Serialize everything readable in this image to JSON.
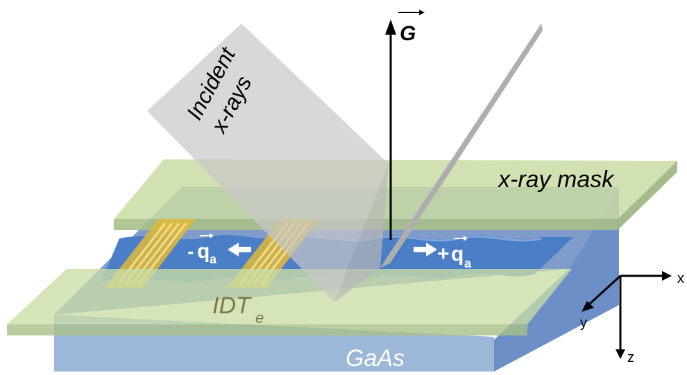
{
  "labels": {
    "incident_line1": "Incident",
    "incident_line2": "x-rays",
    "g_vector": "G",
    "mask": "x-ray mask",
    "idt_main": "IDT",
    "idt_sub": "e",
    "substrate": "GaAs",
    "q_minus_sign": "-",
    "q_plus_sign": "+",
    "q_letter": "q",
    "q_sub": "a",
    "axis_x": "x",
    "axis_y": "y",
    "axis_z": "z"
  },
  "colors": {
    "gaas_front": "#9db7d8",
    "gaas_top": "#7f9ccb",
    "gaas_side": "#6c8fc7",
    "wave_band": "#4a7ec6",
    "mask_fill": "#c9dca5",
    "idt_gold": "#e0b83a",
    "xray_beam": "#c8c8c8",
    "arrow": "#000000"
  }
}
